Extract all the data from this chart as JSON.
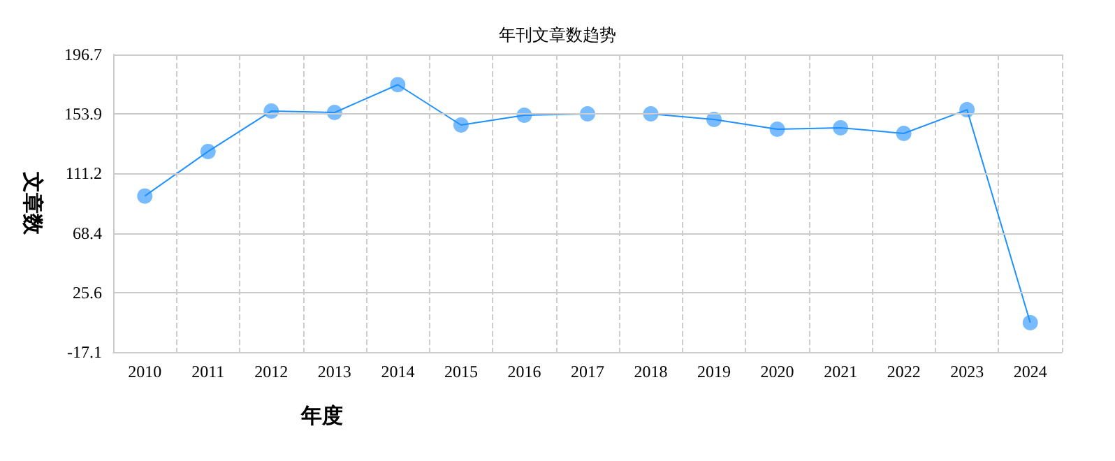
{
  "chart_data": {
    "type": "line",
    "title": "年刊文章数趋势",
    "xlabel": "年度",
    "ylabel": "文章数",
    "categories": [
      "2010",
      "2011",
      "2012",
      "2013",
      "2014",
      "2015",
      "2016",
      "2017",
      "2018",
      "2019",
      "2020",
      "2021",
      "2022",
      "2023",
      "2024"
    ],
    "series": [
      {
        "color": "#1e90ff",
        "values": [
          95,
          127,
          156,
          155,
          175,
          146,
          153,
          154,
          154,
          150,
          143,
          144,
          140,
          157,
          4
        ]
      }
    ],
    "ylim": [
      -17.1,
      196.7
    ],
    "yticks": [
      -17.1,
      25.6,
      68.4,
      111.2,
      153.9,
      196.7
    ],
    "grid": true,
    "marker": "circle",
    "line_style": "solid"
  }
}
